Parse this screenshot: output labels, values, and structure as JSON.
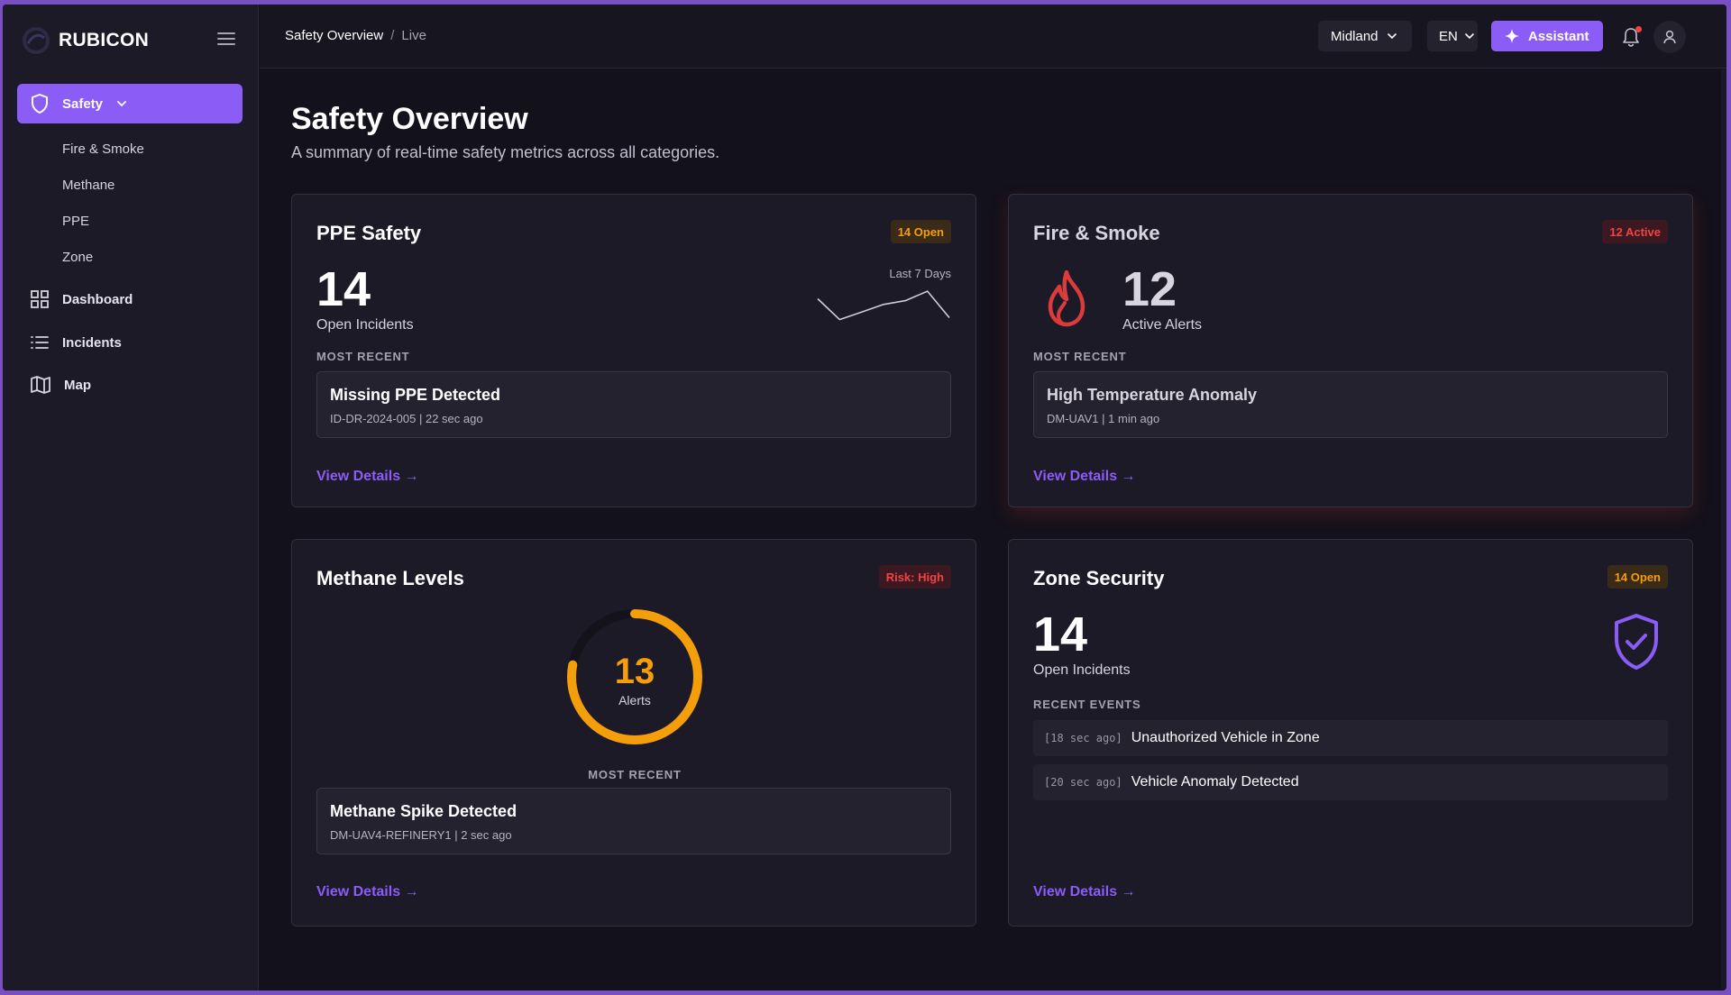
{
  "brand": {
    "name": "RUBICON"
  },
  "sidebar": {
    "active": {
      "label": "Safety"
    },
    "sub_items": [
      {
        "label": "Fire & Smoke"
      },
      {
        "label": "Methane"
      },
      {
        "label": "PPE"
      },
      {
        "label": "Zone"
      }
    ],
    "items": [
      {
        "label": "Dashboard",
        "icon": "grid-icon"
      },
      {
        "label": "Incidents",
        "icon": "list-icon"
      },
      {
        "label": "Map",
        "icon": "map-icon"
      }
    ]
  },
  "topbar": {
    "breadcrumb": [
      "Safety Overview",
      "Live"
    ],
    "breadcrumb_separator": "/",
    "region": "Midland",
    "language": "EN",
    "assistant_label": "Assistant",
    "has_notification": true
  },
  "page": {
    "title": "Safety Overview",
    "subtitle": "A summary of real-time safety metrics across all categories."
  },
  "cards": {
    "ppe": {
      "title": "PPE Safety",
      "badge": "14 Open",
      "count": "14",
      "count_label": "Open Incidents",
      "sparkline_caption": "Last 7 Days",
      "sparkline_values": [
        0.75,
        0.2,
        0.4,
        0.6,
        0.7,
        0.95,
        0.25
      ],
      "recent_label": "MOST RECENT",
      "recent_title": "Missing PPE Detected",
      "recent_meta": "ID-DR-2024-005 | 22 sec ago",
      "link": "View Details →"
    },
    "fire": {
      "title": "Fire & Smoke",
      "badge": "12 Active",
      "count": "12",
      "count_label": "Active Alerts",
      "recent_label": "MOST RECENT",
      "recent_title": "High Temperature Anomaly",
      "recent_meta": "DM-UAV1 | 1 min ago",
      "link": "View Details →"
    },
    "methane": {
      "title": "Methane Levels",
      "badge": "Risk: High",
      "gauge_value": "13",
      "gauge_label": "Alerts",
      "gauge_fraction": 0.78,
      "recent_label": "MOST RECENT",
      "recent_title": "Methane Spike Detected",
      "recent_meta": "DM-UAV4-REFINERY1 | 2 sec ago",
      "link": "View Details →"
    },
    "zone": {
      "title": "Zone Security",
      "badge": "14 Open",
      "count": "14",
      "count_label": "Open Incidents",
      "events_label": "RECENT EVENTS",
      "events": [
        {
          "time": "[18 sec ago]",
          "text": "Unauthorized Vehicle in Zone"
        },
        {
          "time": "[20 sec ago]",
          "text": "Vehicle Anomaly Detected"
        }
      ],
      "link": "View Details →"
    }
  },
  "colors": {
    "accent": "#8b5cf6",
    "amber": "#f59e0b",
    "danger": "#ef4444",
    "background": "#13111b",
    "panel": "#1c1a27"
  }
}
